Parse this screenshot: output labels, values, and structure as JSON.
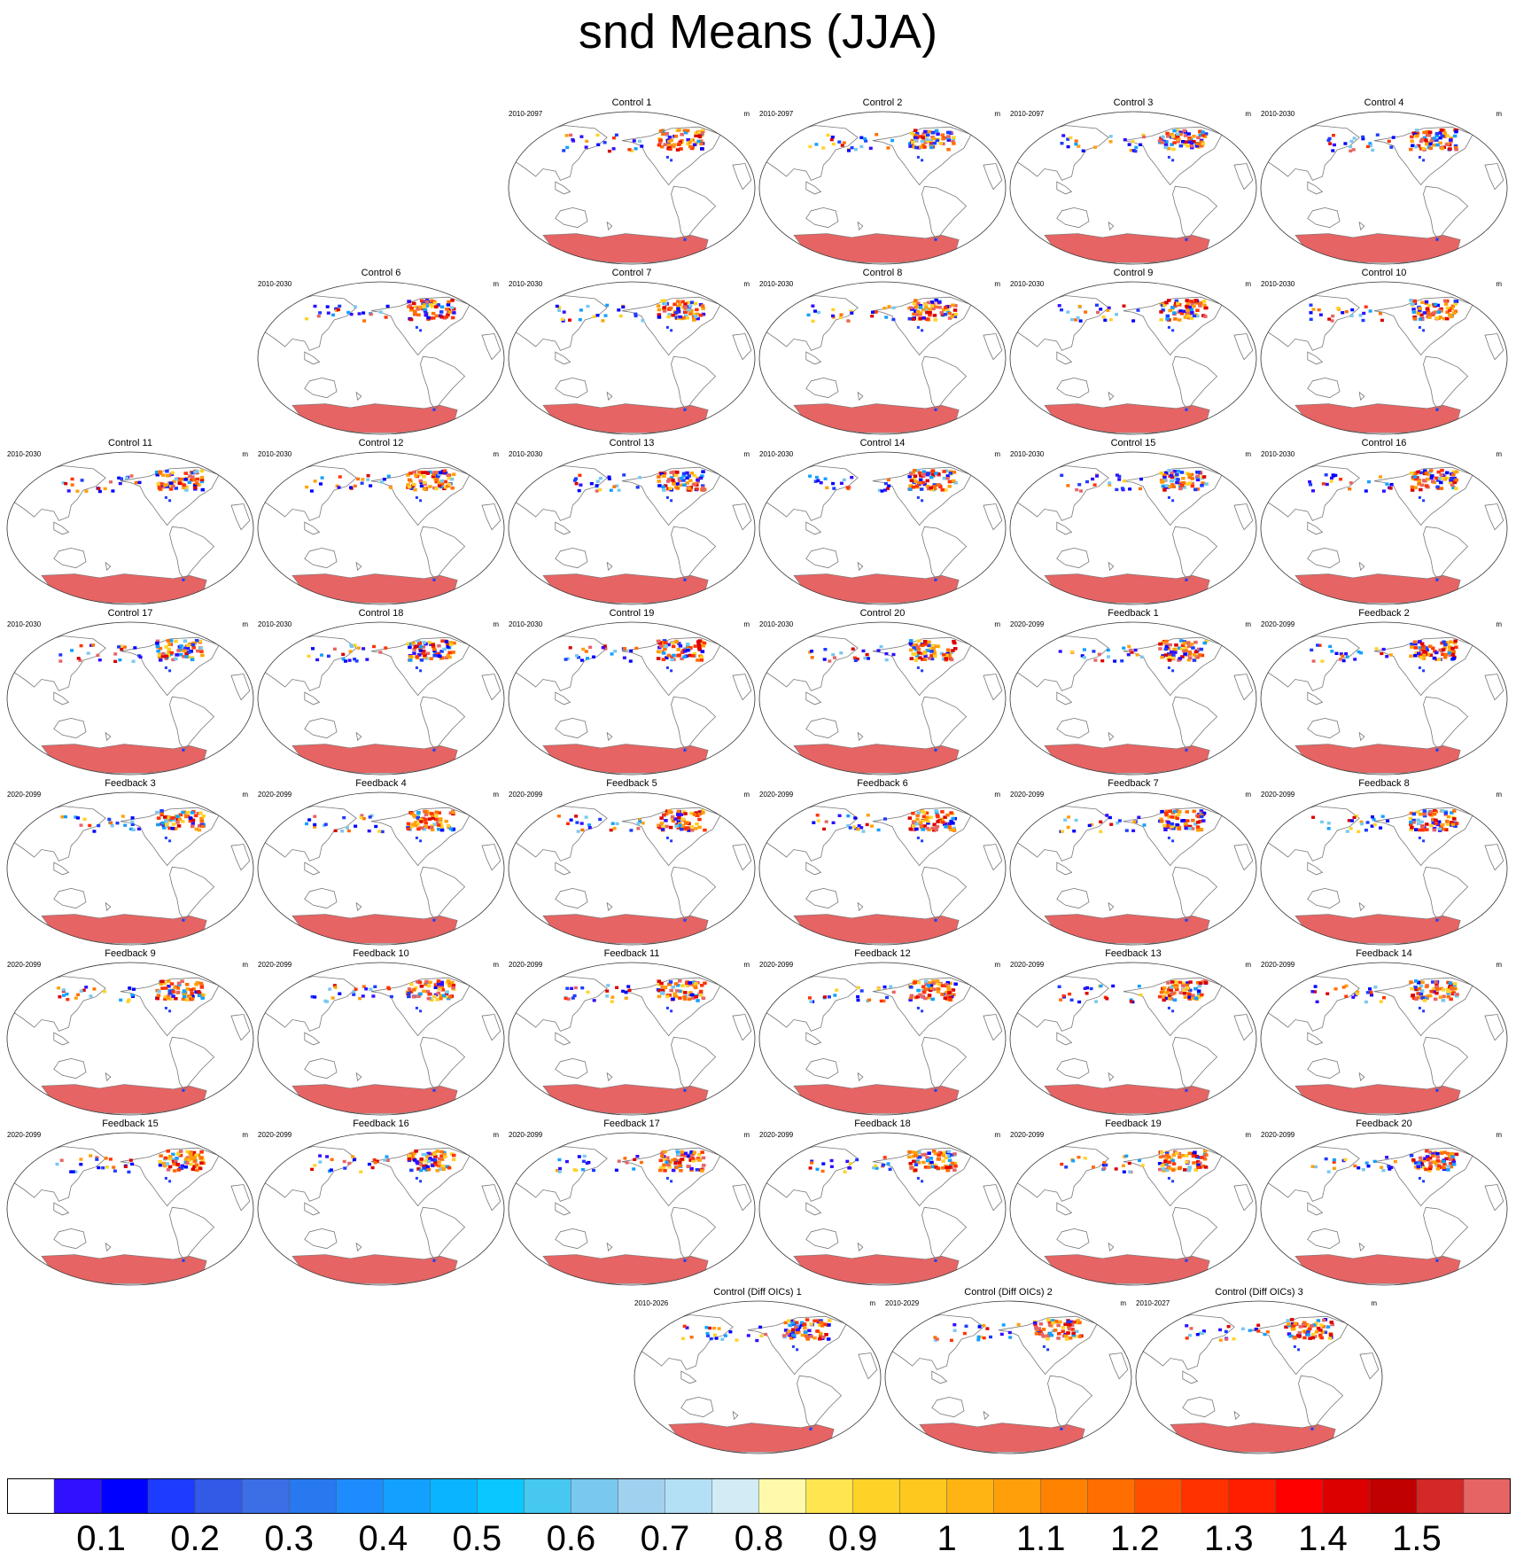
{
  "title": "snd Means (JJA)",
  "chart_data": {
    "type": "heatmap",
    "variable": "snd",
    "season": "JJA",
    "units": "m",
    "colorbar": {
      "levels": [
        "0.1",
        "0.2",
        "0.3",
        "0.4",
        "0.5",
        "0.6",
        "0.7",
        "0.8",
        "0.9",
        "1",
        "1.1",
        "1.2",
        "1.3",
        "1.4",
        "1.5"
      ],
      "colors": [
        "#ffffff",
        "#3010ff",
        "#0000ff",
        "#1e3cff",
        "#325ae6",
        "#3c6ee6",
        "#2878f0",
        "#1e8cff",
        "#14a0ff",
        "#0ab4ff",
        "#0ac8ff",
        "#46c8f0",
        "#78c8f0",
        "#a0d2f0",
        "#b4e0f5",
        "#d2ebf5",
        "#fffaaa",
        "#ffe650",
        "#ffd228",
        "#ffc81e",
        "#ffb414",
        "#ffa00a",
        "#ff8200",
        "#ff6e00",
        "#ff5000",
        "#ff3200",
        "#ff1e00",
        "#ff0000",
        "#dc0000",
        "#c00000",
        "#d22828",
        "#e66464"
      ]
    },
    "panels": [
      {
        "title": "Control 1",
        "period": "2010-2097",
        "units": "m"
      },
      {
        "title": "Control 2",
        "period": "2010-2097",
        "units": "m"
      },
      {
        "title": "Control 3",
        "period": "2010-2097",
        "units": "m"
      },
      {
        "title": "Control 4",
        "period": "2010-2030",
        "units": "m"
      },
      {
        "title": "Control 6",
        "period": "2010-2030",
        "units": "m"
      },
      {
        "title": "Control 7",
        "period": "2010-2030",
        "units": "m"
      },
      {
        "title": "Control 8",
        "period": "2010-2030",
        "units": "m"
      },
      {
        "title": "Control 9",
        "period": "2010-2030",
        "units": "m"
      },
      {
        "title": "Control 10",
        "period": "2010-2030",
        "units": "m"
      },
      {
        "title": "Control 11",
        "period": "2010-2030",
        "units": "m"
      },
      {
        "title": "Control 12",
        "period": "2010-2030",
        "units": "m"
      },
      {
        "title": "Control 13",
        "period": "2010-2030",
        "units": "m"
      },
      {
        "title": "Control 14",
        "period": "2010-2030",
        "units": "m"
      },
      {
        "title": "Control 15",
        "period": "2010-2030",
        "units": "m"
      },
      {
        "title": "Control 16",
        "period": "2010-2030",
        "units": "m"
      },
      {
        "title": "Control 17",
        "period": "2010-2030",
        "units": "m"
      },
      {
        "title": "Control 18",
        "period": "2010-2030",
        "units": "m"
      },
      {
        "title": "Control 19",
        "period": "2010-2030",
        "units": "m"
      },
      {
        "title": "Control 20",
        "period": "2010-2030",
        "units": "m"
      },
      {
        "title": "Feedback 1",
        "period": "2020-2099",
        "units": "m"
      },
      {
        "title": "Feedback 2",
        "period": "2020-2099",
        "units": "m"
      },
      {
        "title": "Feedback 3",
        "period": "2020-2099",
        "units": "m"
      },
      {
        "title": "Feedback 4",
        "period": "2020-2099",
        "units": "m"
      },
      {
        "title": "Feedback 5",
        "period": "2020-2099",
        "units": "m"
      },
      {
        "title": "Feedback 6",
        "period": "2020-2099",
        "units": "m"
      },
      {
        "title": "Feedback 7",
        "period": "2020-2099",
        "units": "m"
      },
      {
        "title": "Feedback 8",
        "period": "2020-2099",
        "units": "m"
      },
      {
        "title": "Feedback 9",
        "period": "2020-2099",
        "units": "m"
      },
      {
        "title": "Feedback 10",
        "period": "2020-2099",
        "units": "m"
      },
      {
        "title": "Feedback 11",
        "period": "2020-2099",
        "units": "m"
      },
      {
        "title": "Feedback 12",
        "period": "2020-2099",
        "units": "m"
      },
      {
        "title": "Feedback 13",
        "period": "2020-2099",
        "units": "m"
      },
      {
        "title": "Feedback 14",
        "period": "2020-2099",
        "units": "m"
      },
      {
        "title": "Feedback 15",
        "period": "2020-2099",
        "units": "m"
      },
      {
        "title": "Feedback 16",
        "period": "2020-2099",
        "units": "m"
      },
      {
        "title": "Feedback 17",
        "period": "2020-2099",
        "units": "m"
      },
      {
        "title": "Feedback 18",
        "period": "2020-2099",
        "units": "m"
      },
      {
        "title": "Feedback 19",
        "period": "2020-2099",
        "units": "m"
      },
      {
        "title": "Feedback 20",
        "period": "2020-2099",
        "units": "m"
      },
      {
        "title": "Control (Diff OICs) 1",
        "period": "2010-2026",
        "units": "m"
      },
      {
        "title": "Control (Diff OICs) 2",
        "period": "2010-2029",
        "units": "m"
      },
      {
        "title": "Control (Diff OICs) 3",
        "period": "2010-2027",
        "units": "m"
      }
    ]
  }
}
